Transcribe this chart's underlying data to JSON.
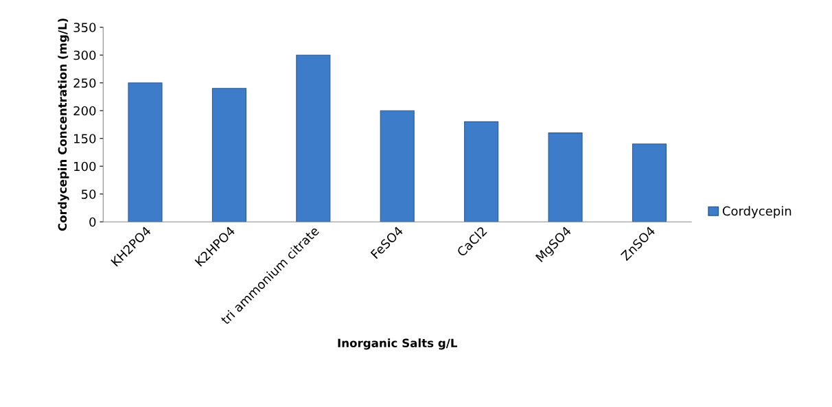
{
  "chart_data": {
    "type": "bar",
    "xlabel": "Inorganic Salts g/L",
    "ylabel": "Cordycepin Concentration (mg/L)",
    "categories": [
      "KH2PO4",
      "K2HPO4",
      "tri ammonium citrate",
      "FeSO4",
      "CaCl2",
      "MgSO4",
      "ZnSO4"
    ],
    "series": [
      {
        "name": "Cordycepin",
        "color": "#3d7cc9",
        "values": [
          250,
          240,
          300,
          200,
          180,
          160,
          140
        ]
      }
    ],
    "ylim": [
      0,
      350
    ],
    "yticks": [
      0,
      50,
      100,
      150,
      200,
      250,
      300,
      350
    ],
    "grid": false,
    "legend": "right"
  }
}
